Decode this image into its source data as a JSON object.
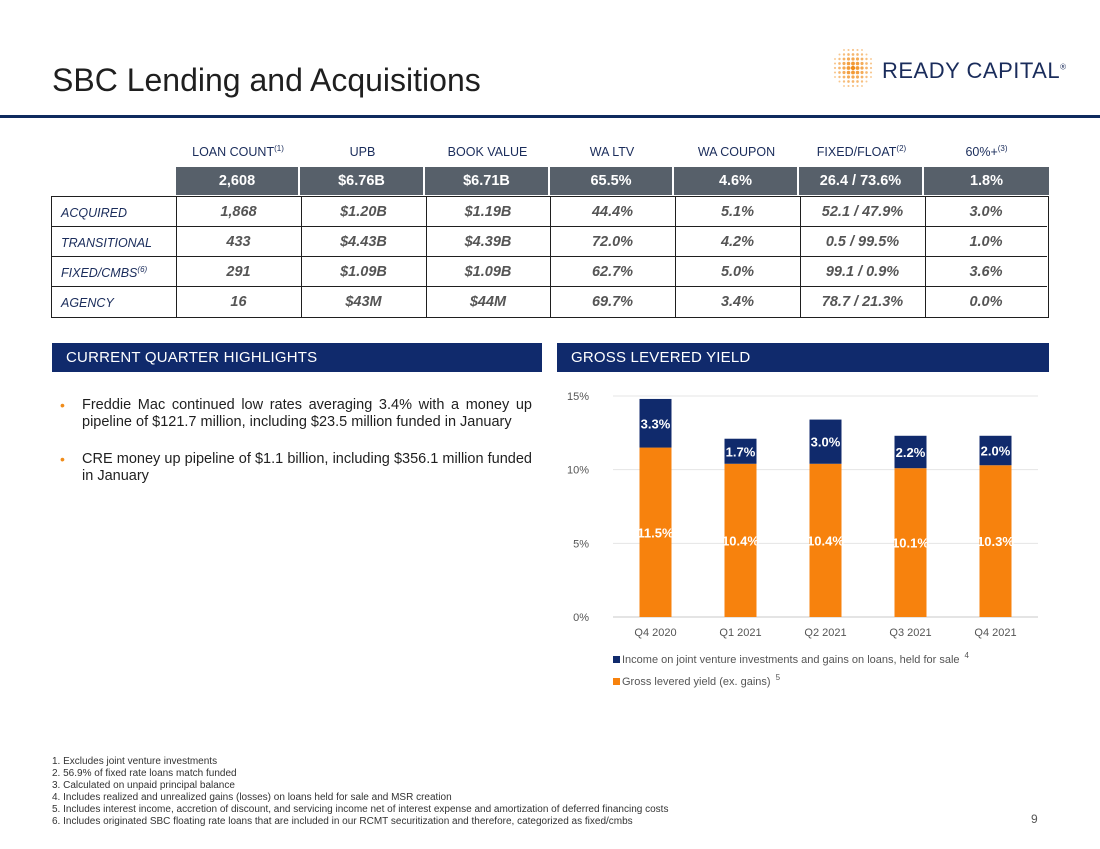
{
  "page": {
    "title": "SBC Lending and Acquisitions",
    "page_number": "9"
  },
  "logo": {
    "text": "READY CAPITAL",
    "trademark": "®",
    "color": "#1a2c5b",
    "accent": "#f08c1a"
  },
  "table": {
    "headers": [
      {
        "label": "LOAN COUNT",
        "sup": "(1)"
      },
      {
        "label": "UPB",
        "sup": ""
      },
      {
        "label": "BOOK VALUE",
        "sup": ""
      },
      {
        "label": "WA LTV",
        "sup": ""
      },
      {
        "label": "WA COUPON",
        "sup": ""
      },
      {
        "label": "FIXED/FLOAT",
        "sup": "(2)"
      },
      {
        "label": "60%+",
        "sup": "(3)"
      }
    ],
    "totals": [
      "2,608",
      "$6.76B",
      "$6.71B",
      "65.5%",
      "4.6%",
      "26.4 / 73.6%",
      "1.8%"
    ],
    "rows": [
      {
        "label": "ACQUIRED",
        "sup": "",
        "values": [
          "1,868",
          "$1.20B",
          "$1.19B",
          "44.4%",
          "5.1%",
          "52.1 / 47.9%",
          "3.0%"
        ]
      },
      {
        "label": "TRANSITIONAL",
        "sup": "",
        "values": [
          "433",
          "$4.43B",
          "$4.39B",
          "72.0%",
          "4.2%",
          "0.5 / 99.5%",
          "1.0%"
        ]
      },
      {
        "label": "FIXED/CMBS",
        "sup": "(6)",
        "values": [
          "291",
          "$1.09B",
          "$1.09B",
          "62.7%",
          "5.0%",
          "99.1 / 0.9%",
          "3.6%"
        ]
      },
      {
        "label": "AGENCY",
        "sup": "",
        "values": [
          "16",
          "$43M",
          "$44M",
          "69.7%",
          "3.4%",
          "78.7 / 21.3%",
          "0.0%"
        ]
      }
    ]
  },
  "highlights": {
    "header": "CURRENT QUARTER HIGHLIGHTS",
    "bullets": [
      "Freddie Mac continued low rates averaging 3.4% with a money up pipeline of $121.7 million, including $23.5 million funded in January",
      "CRE money up pipeline of $1.1 billion, including $356.1 million funded in January"
    ]
  },
  "yield_section": {
    "header": "GROSS LEVERED YIELD"
  },
  "chart_data": {
    "type": "bar",
    "stacked": true,
    "categories": [
      "Q4 2020",
      "Q1 2021",
      "Q2 2021",
      "Q3 2021",
      "Q4 2021"
    ],
    "series": [
      {
        "name": "Gross levered yield (ex. gains)",
        "sup": "5",
        "color": "#f7820d",
        "values": [
          11.5,
          10.4,
          10.4,
          10.1,
          10.3
        ],
        "labels": [
          "11.5%",
          "10.4%",
          "10.4%",
          "10.1%",
          "10.3%"
        ]
      },
      {
        "name": "Income on joint venture investments and gains on loans, held for sale",
        "sup": "4",
        "color": "#102a6c",
        "values": [
          3.3,
          1.7,
          3.0,
          2.2,
          2.0
        ],
        "labels": [
          "3.3%",
          "1.7%",
          "3.0%",
          "2.2%",
          "2.0%"
        ]
      }
    ],
    "yticks": [
      "0%",
      "5%",
      "10%",
      "15%"
    ],
    "ylim": [
      0,
      15
    ],
    "legend_position": "bottom"
  },
  "footnotes": [
    "1. Excludes joint venture investments",
    "2. 56.9% of fixed rate loans match funded",
    "3. Calculated on unpaid principal balance",
    "4. Includes realized and unrealized gains (losses) on loans held for sale and MSR creation",
    "5. Includes interest income, accretion of discount, and servicing income net of interest expense and amortization of deferred financing costs",
    "6. Includes originated SBC floating rate loans that are included in our RCMT securitization and therefore, categorized as fixed/cmbs"
  ]
}
